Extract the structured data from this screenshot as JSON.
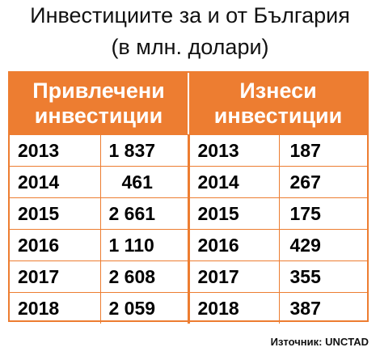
{
  "title": {
    "line1": "Инвестициите за и от България",
    "line2": "(в млн. долари)"
  },
  "table": {
    "headers": [
      "Привлечени инвестиции",
      "Изнеси инвестиции"
    ],
    "rows": [
      {
        "year_in": "2013",
        "value_in": "1 837",
        "year_out": "2013",
        "value_out": "187"
      },
      {
        "year_in": "2014",
        "value_in": "461",
        "year_out": "2014",
        "value_out": "267"
      },
      {
        "year_in": "2015",
        "value_in": "2 661",
        "year_out": "2015",
        "value_out": "175"
      },
      {
        "year_in": "2016",
        "value_in": "1 110",
        "year_out": "2016",
        "value_out": "429"
      },
      {
        "year_in": "2017",
        "value_in": "2 608",
        "year_out": "2017",
        "value_out": "355"
      },
      {
        "year_in": "2018",
        "value_in": "2 059",
        "year_out": "2018",
        "value_out": "387"
      }
    ]
  },
  "source": "Източник: UNCTAD",
  "colors": {
    "accent": "#ED7D31",
    "header_text": "#ffffff",
    "body_text": "#000000"
  }
}
